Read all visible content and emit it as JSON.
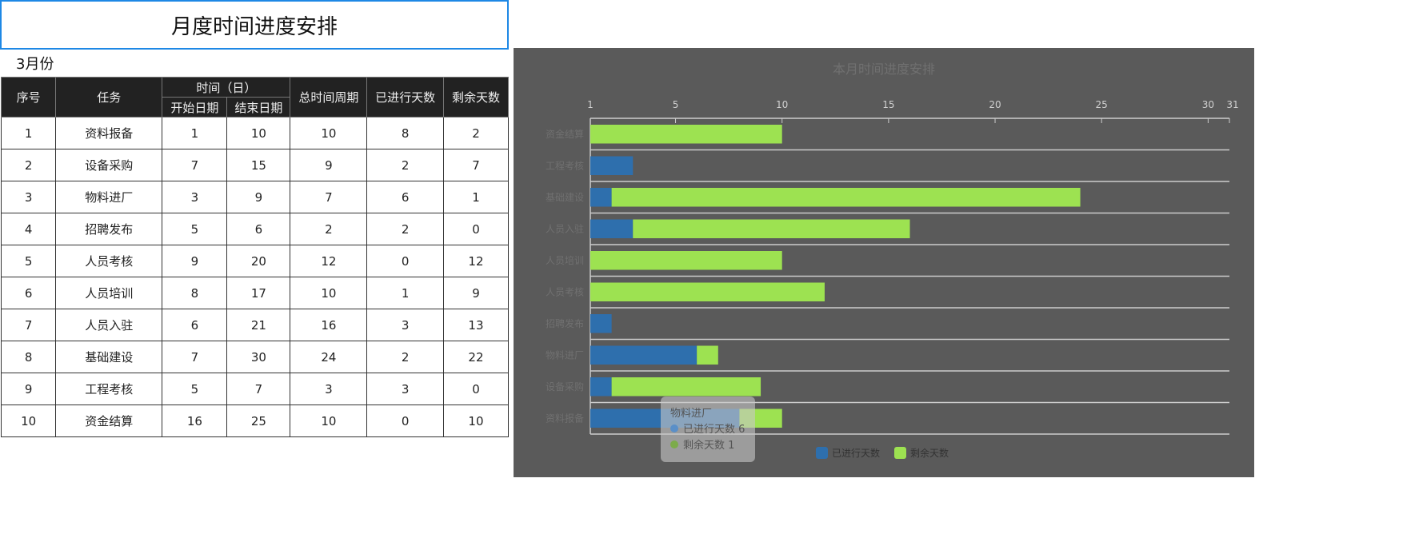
{
  "title": "月度时间进度安排",
  "month": "3月份",
  "table": {
    "headers": {
      "no": "序号",
      "task": "任务",
      "time": "时间（日）",
      "start": "开始日期",
      "end": "结束日期",
      "total": "总时间周期",
      "done": "已进行天数",
      "remain": "剩余天数"
    },
    "rows": [
      [
        "1",
        "资料报备",
        "1",
        "10",
        "10",
        "8",
        "2"
      ],
      [
        "2",
        "设备采购",
        "7",
        "15",
        "9",
        "2",
        "7"
      ],
      [
        "3",
        "物料进厂",
        "3",
        "9",
        "7",
        "6",
        "1"
      ],
      [
        "4",
        "招聘发布",
        "5",
        "6",
        "2",
        "2",
        "0"
      ],
      [
        "5",
        "人员考核",
        "9",
        "20",
        "12",
        "0",
        "12"
      ],
      [
        "6",
        "人员培训",
        "8",
        "17",
        "10",
        "1",
        "9"
      ],
      [
        "7",
        "人员入驻",
        "6",
        "21",
        "16",
        "3",
        "13"
      ],
      [
        "8",
        "基础建设",
        "7",
        "30",
        "24",
        "2",
        "22"
      ],
      [
        "9",
        "工程考核",
        "5",
        "7",
        "3",
        "3",
        "0"
      ],
      [
        "10",
        "资金结算",
        "16",
        "25",
        "10",
        "0",
        "10"
      ]
    ]
  },
  "chart_data": {
    "type": "bar",
    "orientation": "horizontal-stacked",
    "title": "本月时间进度安排",
    "categories": [
      "资金结算",
      "工程考核",
      "基础建设",
      "人员入驻",
      "人员培训",
      "人员考核",
      "招聘发布",
      "物料进厂",
      "设备采购",
      "资料报备"
    ],
    "series": [
      {
        "name": "已进行天数",
        "color": "#2e6fad",
        "values": [
          0,
          3,
          2,
          3,
          1,
          0,
          2,
          6,
          2,
          8
        ]
      },
      {
        "name": "剩余天数",
        "color": "#9de251",
        "values": [
          10,
          0,
          22,
          13,
          9,
          12,
          0,
          1,
          7,
          2
        ]
      }
    ],
    "xlim": [
      1,
      31
    ],
    "xticks": [
      "1",
      "5",
      "10",
      "15",
      "20",
      "25",
      "30",
      "31"
    ],
    "legend": "bottom",
    "tooltip": {
      "title": "物料进厂",
      "lines": [
        "已进行天数 6",
        "剩余天数 1"
      ]
    }
  }
}
